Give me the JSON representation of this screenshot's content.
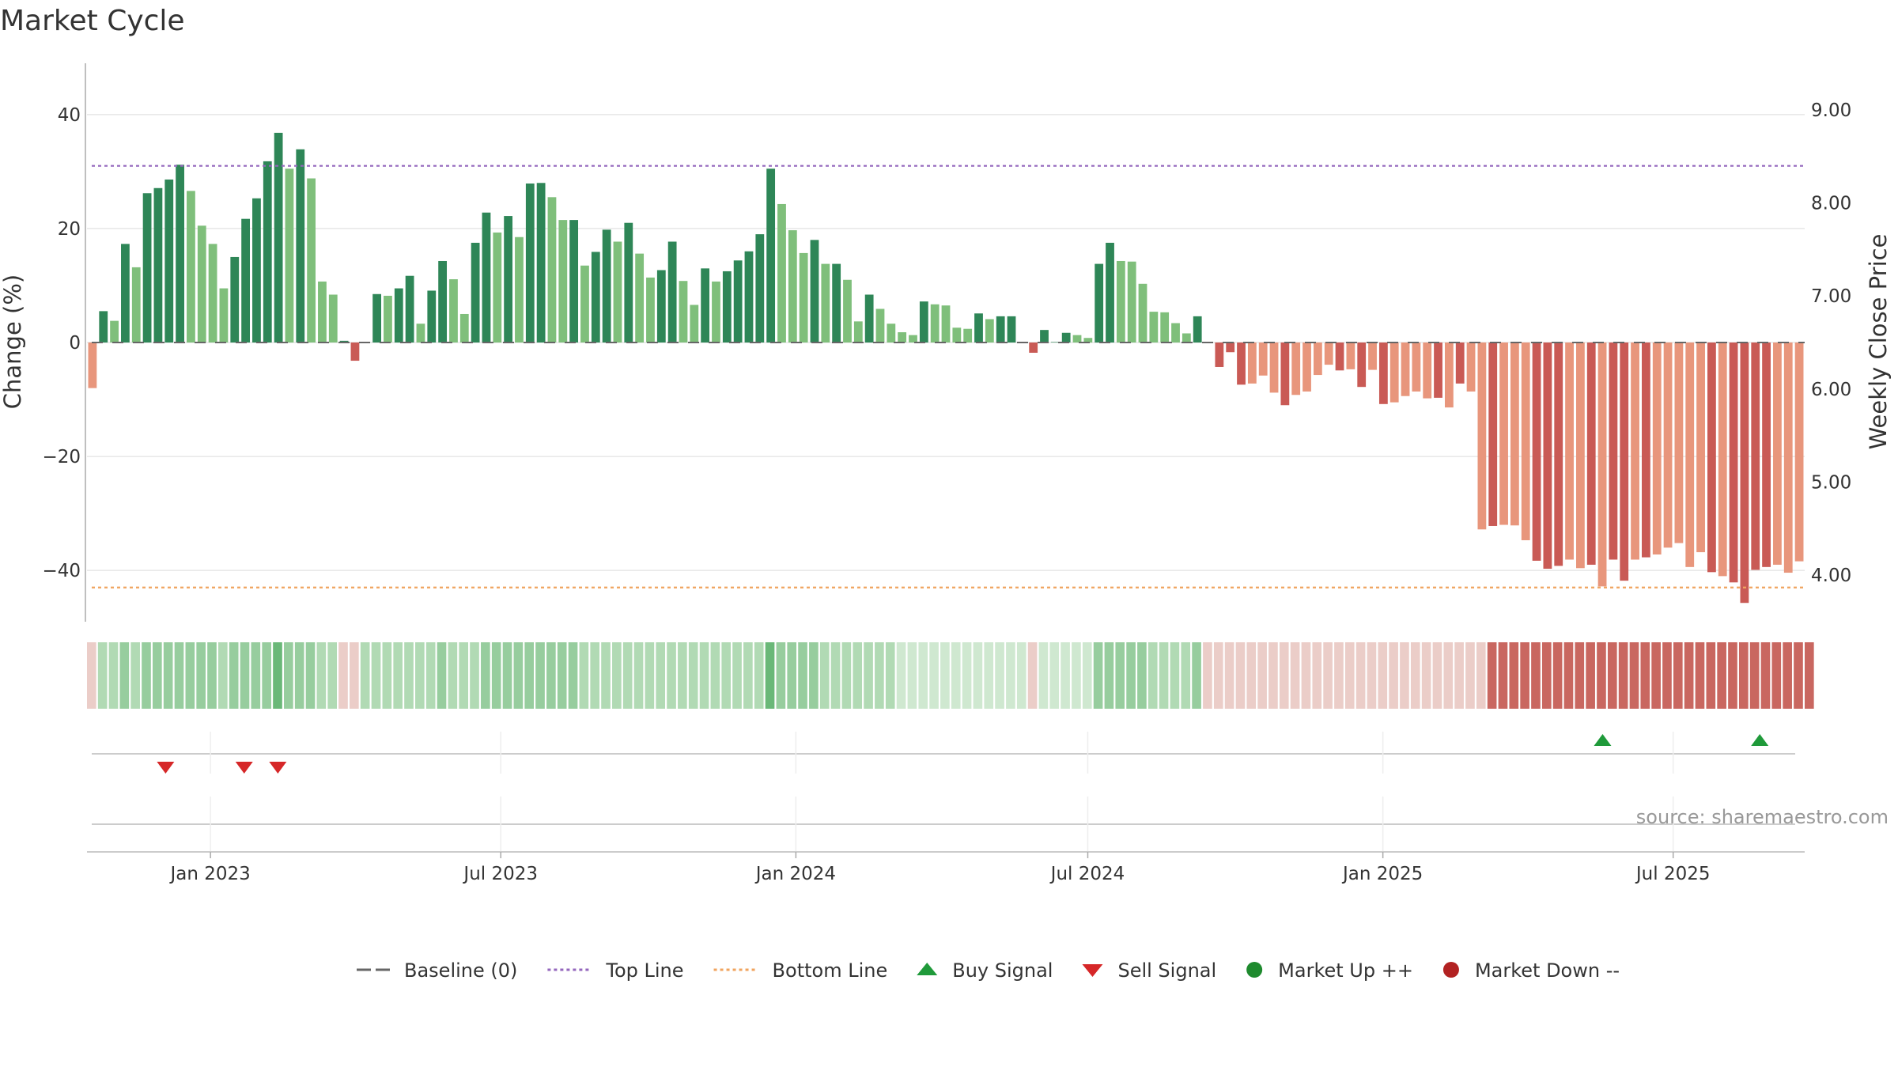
{
  "chart_data": {
    "type": "bar",
    "title": "Market Cycle",
    "ylabel": "Change (%)",
    "y2label": "Weekly Close Price",
    "ylim": [
      -49,
      49
    ],
    "y2lim": [
      3.5,
      9.5
    ],
    "yticks": [
      {
        "value": 40,
        "label": "40"
      },
      {
        "value": 20,
        "label": "20"
      },
      {
        "value": 0,
        "label": "0"
      },
      {
        "value": -20,
        "label": "−20"
      },
      {
        "value": -40,
        "label": "−40"
      }
    ],
    "y2ticks": [
      {
        "value": 9.0,
        "label": "9.00"
      },
      {
        "value": 8.0,
        "label": "8.00"
      },
      {
        "value": 7.0,
        "label": "7.00"
      },
      {
        "value": 6.0,
        "label": "6.00"
      },
      {
        "value": 5.0,
        "label": "5.00"
      },
      {
        "value": 4.0,
        "label": "4.00"
      }
    ],
    "xrange": [
      "2022-10-16",
      "2025-09-21"
    ],
    "xticks": [
      {
        "date": "2023-01-01",
        "label": "Jan 2023"
      },
      {
        "date": "2023-07-01",
        "label": "Jul 2023"
      },
      {
        "date": "2024-01-01",
        "label": "Jan 2024"
      },
      {
        "date": "2024-07-01",
        "label": "Jul 2024"
      },
      {
        "date": "2025-01-01",
        "label": "Jan 2025"
      },
      {
        "date": "2025-07-01",
        "label": "Jul 2025"
      }
    ],
    "top_line": 31,
    "bottom_line": -43,
    "start_week": "2022-10-16",
    "values": [
      -8,
      5.5,
      3.8,
      17.3,
      13.2,
      26.2,
      27.1,
      28.6,
      31.2,
      26.6,
      20.5,
      17.3,
      9.5,
      15,
      21.7,
      25.3,
      31.8,
      36.8,
      30.5,
      33.9,
      28.8,
      10.7,
      8.4,
      0.3,
      -3.2,
      0.1,
      8.5,
      8.2,
      9.5,
      11.7,
      3.3,
      9.1,
      14.3,
      11.1,
      5,
      17.5,
      22.8,
      19.3,
      22.2,
      18.5,
      27.9,
      28,
      25.5,
      21.5,
      21.5,
      13.5,
      15.9,
      19.8,
      17.7,
      21,
      15.6,
      11.4,
      12.7,
      17.7,
      10.8,
      6.6,
      13,
      10.7,
      12.5,
      14.4,
      16,
      19,
      30.5,
      24.3,
      19.7,
      15.7,
      18,
      13.8,
      13.8,
      11,
      3.7,
      8.4,
      5.9,
      3.3,
      1.8,
      1.3,
      7.2,
      6.7,
      6.5,
      2.6,
      2.4,
      5.1,
      4.1,
      4.6,
      4.6,
      0,
      -1.8,
      2.2,
      0,
      1.7,
      1.3,
      0.8,
      13.8,
      17.5,
      14.3,
      14.2,
      10.3,
      5.4,
      5.3,
      3.4,
      1.6,
      4.6,
      0,
      -4.3,
      -1.7,
      -7.4,
      -7.2,
      -5.8,
      -8.8,
      -11,
      -9.2,
      -8.6,
      -5.7,
      -3.9,
      -4.9,
      -4.7,
      -7.8,
      -4.8,
      -10.8,
      -10.5,
      -9.4,
      -8.6,
      -9.8,
      -9.7,
      -11.4,
      -7.2,
      -8.6,
      -32.8,
      -32.2,
      -32,
      -32.1,
      -34.7,
      -38.3,
      -39.7,
      -39.2,
      -38.1,
      -39.6,
      -39,
      -42.8,
      -38.1,
      -41.8,
      -38.1,
      -37.7,
      -37.2,
      -36,
      -35.2,
      -39.4,
      -36.8,
      -40.3,
      -41,
      -42.1,
      -45.7,
      -39.9,
      -39.4,
      -39,
      -40.4,
      -38.4
    ],
    "shades": [
      1,
      2,
      1,
      2,
      1,
      2,
      2,
      2,
      2,
      1,
      1,
      1,
      1,
      2,
      2,
      2,
      2,
      2,
      1,
      2,
      1,
      1,
      1,
      2,
      2,
      2,
      2,
      1,
      2,
      2,
      1,
      2,
      2,
      1,
      1,
      2,
      2,
      1,
      2,
      1,
      2,
      2,
      1,
      1,
      2,
      1,
      2,
      2,
      1,
      2,
      1,
      1,
      2,
      2,
      1,
      1,
      2,
      1,
      2,
      2,
      2,
      2,
      2,
      1,
      1,
      1,
      2,
      1,
      2,
      1,
      1,
      2,
      1,
      1,
      1,
      1,
      2,
      1,
      1,
      1,
      1,
      2,
      1,
      2,
      2,
      2,
      2,
      2,
      2,
      2,
      1,
      1,
      2,
      2,
      1,
      1,
      1,
      1,
      1,
      1,
      1,
      2,
      2,
      2,
      2,
      2,
      1,
      1,
      1,
      2,
      1,
      1,
      1,
      1,
      2,
      1,
      2,
      1,
      2,
      1,
      1,
      1,
      1,
      2,
      1,
      2,
      1,
      1,
      2,
      1,
      1,
      1,
      2,
      2,
      2,
      1,
      1,
      2,
      1,
      2,
      2,
      1,
      2,
      1,
      1,
      1,
      1,
      1,
      2,
      1,
      2,
      2,
      2,
      2,
      1,
      1,
      1,
      2,
      1
    ],
    "heat_levels": [
      -1,
      2,
      2,
      3,
      2,
      3,
      3,
      3,
      3,
      3,
      3,
      3,
      2,
      3,
      3,
      3,
      3,
      4,
      3,
      3,
      3,
      2,
      2,
      -1,
      -1,
      2,
      2,
      2,
      2,
      2,
      2,
      2,
      3,
      2,
      2,
      2,
      3,
      3,
      3,
      3,
      3,
      3,
      3,
      3,
      3,
      2,
      2,
      2,
      2,
      2,
      2,
      2,
      2,
      2,
      2,
      2,
      2,
      2,
      2,
      2,
      2,
      2,
      4,
      3,
      3,
      3,
      3,
      2,
      2,
      2,
      2,
      2,
      2,
      2,
      1,
      1,
      1,
      1,
      1,
      1,
      1,
      1,
      1,
      1,
      1,
      1,
      -1,
      1,
      1,
      1,
      1,
      1,
      3,
      3,
      3,
      3,
      3,
      2,
      2,
      2,
      2,
      3,
      -1,
      -1,
      -1,
      -1,
      -1,
      -1,
      -1,
      -1,
      -1,
      -1,
      -1,
      -1,
      -1,
      -1,
      -1,
      -1,
      -1,
      -1,
      -1,
      -1,
      -1,
      -1,
      -1,
      -1,
      -1,
      -1,
      -3,
      -3,
      -3,
      -3,
      -3,
      -3,
      -3,
      -3,
      -3,
      -3,
      -3,
      -3,
      -3,
      -3,
      -3,
      -3,
      -3,
      -3,
      -3,
      -3,
      -3,
      -3,
      -3,
      -3,
      -3,
      -3,
      -3,
      -3,
      -3,
      -3
    ],
    "buy_signals": [
      "2025-05-18",
      "2025-08-24"
    ],
    "sell_signals": [
      "2022-12-04",
      "2023-01-22",
      "2023-02-12"
    ],
    "legend": [
      {
        "label": "Baseline (0)",
        "symbol": "dash",
        "color": "#666666"
      },
      {
        "label": "Top Line",
        "symbol": "dotted",
        "color": "#9467bd"
      },
      {
        "label": "Bottom Line",
        "symbol": "dotted",
        "color": "#f0a45f"
      },
      {
        "label": "Buy Signal",
        "symbol": "triangle-up",
        "color": "#1f9a3a"
      },
      {
        "label": "Sell Signal",
        "symbol": "triangle-down",
        "color": "#d62728"
      },
      {
        "label": "Market Up ++",
        "symbol": "circle",
        "color": "#1e8a2e"
      },
      {
        "label": "Market Down --",
        "symbol": "circle",
        "color": "#b22222"
      }
    ],
    "legend_position": "bottom-center",
    "source": "source: sharemaestro.com",
    "colors": {
      "up_dark": "#2e8657",
      "up_light": "#7fbf7b",
      "down_dark": "#c95a55",
      "down_light": "#e8967c",
      "grid": "#e6e6e6",
      "top_line": "#9467bd",
      "bottom_line": "#f0a45f"
    }
  }
}
